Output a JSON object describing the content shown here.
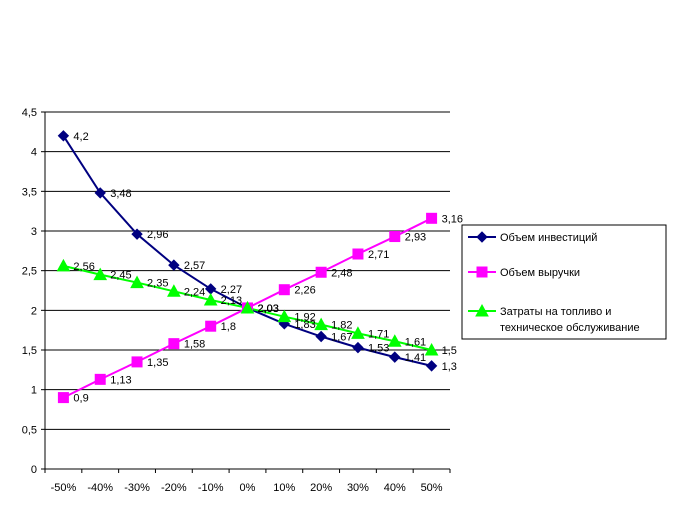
{
  "chart_data": {
    "type": "line",
    "categories": [
      "-50%",
      "-40%",
      "-30%",
      "-20%",
      "-10%",
      "0%",
      "10%",
      "20%",
      "30%",
      "40%",
      "50%"
    ],
    "ylim": [
      0,
      4.5
    ],
    "yticks": [
      "0",
      "0,5",
      "1",
      "1,5",
      "2",
      "2,5",
      "3",
      "3,5",
      "4",
      "4,5"
    ],
    "grid": true,
    "legend_position": "right",
    "series": [
      {
        "name": "Объем инвестиций",
        "color": "#000080",
        "marker": "diamond",
        "values": [
          4.2,
          3.48,
          2.96,
          2.57,
          2.27,
          2.03,
          1.83,
          1.67,
          1.53,
          1.41,
          1.3
        ],
        "labels": [
          "4,2",
          "3,48",
          "2,96",
          "2,57",
          "2,27",
          "2,03",
          "1,83",
          "1,67",
          "1,53",
          "1,41",
          "1,3"
        ]
      },
      {
        "name": "Объем выручки",
        "color": "#FF00FF",
        "marker": "square",
        "values": [
          0.9,
          1.13,
          1.35,
          1.58,
          1.8,
          2.03,
          2.26,
          2.48,
          2.71,
          2.93,
          3.16
        ],
        "labels": [
          "0,9",
          "1,13",
          "1,35",
          "1,58",
          "1,8",
          "2,03",
          "2,26",
          "2,48",
          "2,71",
          "2,93",
          "3,16"
        ]
      },
      {
        "name": "Затраты на топливо и техническое обслуживание",
        "name_lines": [
          "Затраты на топливо и",
          "техническое обслуживание"
        ],
        "color": "#00FF00",
        "marker": "triangle",
        "values": [
          2.56,
          2.45,
          2.35,
          2.24,
          2.13,
          2.03,
          1.92,
          1.82,
          1.71,
          1.61,
          1.5
        ],
        "labels": [
          "2,56",
          "2,45",
          "2,35",
          "2,24",
          "2,13",
          "2,03",
          "1,92",
          "1,82",
          "1,71",
          "1,61",
          "1,5"
        ]
      }
    ]
  }
}
